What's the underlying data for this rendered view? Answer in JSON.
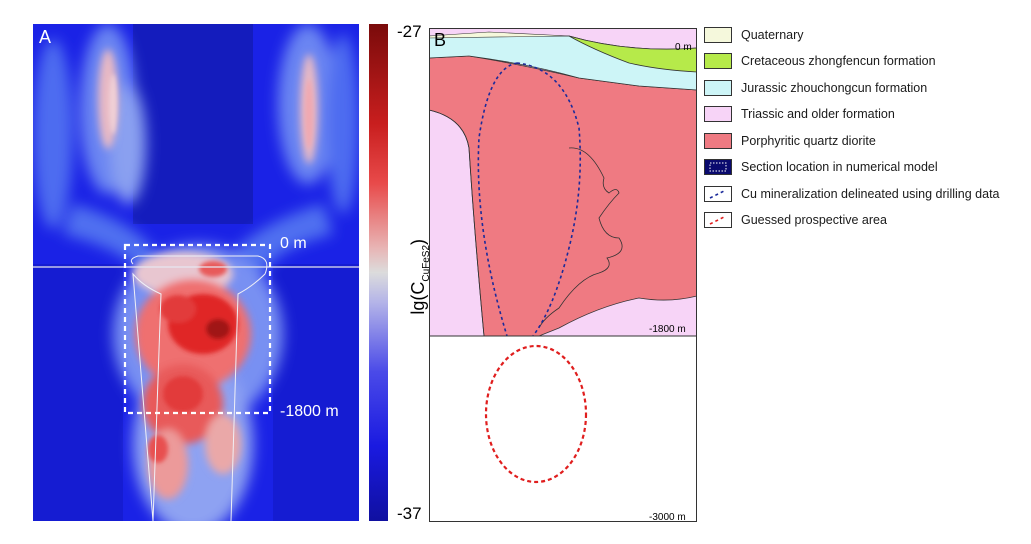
{
  "panel_a": {
    "letter": "A",
    "depth_top": "0 m",
    "depth_bottom": "-1800 m"
  },
  "colorbar": {
    "max_label": "-27",
    "min_label": "-37",
    "axis_label_main": "lg(C",
    "axis_label_sub": "CuFeS",
    "axis_label_sub2": "2",
    "axis_label_close": ")",
    "colors": [
      "#7a0b0b",
      "#c81e1e",
      "#e84a4a",
      "#dcdcdc",
      "#4a4ae8",
      "#1010a0"
    ]
  },
  "panel_b": {
    "letter": "B",
    "depth_top": "0 m",
    "depth_mid": "-1800 m",
    "depth_bottom": "-3000 m"
  },
  "legend": [
    {
      "label": "Quaternary",
      "color": "#f5f8dc",
      "type": "fill"
    },
    {
      "label": "Cretaceous zhongfencun formation",
      "color": "#b6ea4a",
      "type": "fill"
    },
    {
      "label": "Jurassic zhouchongcun formation",
      "color": "#cdf5f7",
      "type": "fill"
    },
    {
      "label": "Triassic and older formation",
      "color": "#f7d4f7",
      "type": "fill"
    },
    {
      "label": "Porphyritic quartz diorite",
      "color": "#ef7a82",
      "type": "fill"
    },
    {
      "label": "Section location in numerical model",
      "color": "#0a0a6e",
      "type": "dotted-box"
    },
    {
      "label": "Cu mineralization delineated using drilling data",
      "color": "#1a2a9a",
      "type": "dash-line"
    },
    {
      "label": "Guessed prospective area",
      "color": "#e01e1e",
      "type": "dash-line"
    }
  ]
}
